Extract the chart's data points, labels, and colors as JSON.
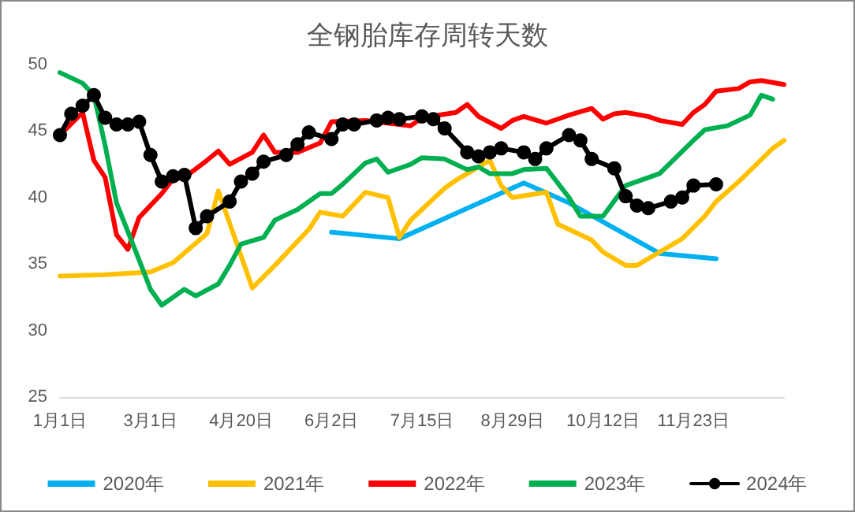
{
  "chart_data": {
    "type": "line",
    "title": "全钢胎库存周转天数",
    "categories": [
      "1月1日",
      null,
      null,
      null,
      null,
      null,
      null,
      null,
      "3月1日",
      null,
      null,
      null,
      null,
      null,
      null,
      null,
      "4月20日",
      null,
      null,
      null,
      null,
      null,
      null,
      null,
      "6月2日",
      null,
      null,
      null,
      null,
      null,
      null,
      null,
      "7月15日",
      null,
      null,
      null,
      null,
      null,
      null,
      null,
      "8月29日",
      null,
      null,
      null,
      null,
      null,
      null,
      null,
      "10月12日",
      null,
      null,
      null,
      null,
      null,
      null,
      null,
      "11月23日",
      null,
      null,
      null,
      null,
      null,
      null,
      null,
      null
    ],
    "ylim": [
      25,
      50
    ],
    "yticks": [
      25,
      30,
      35,
      40,
      45,
      50
    ],
    "grid": false,
    "legend": "bottom",
    "line_style": "solid",
    "series": [
      {
        "name": "2020年",
        "color": "#00b0f0",
        "marker": "none",
        "values": [
          null,
          null,
          null,
          null,
          null,
          null,
          null,
          null,
          null,
          null,
          null,
          null,
          null,
          null,
          null,
          null,
          null,
          null,
          null,
          null,
          null,
          null,
          null,
          null,
          37.4,
          null,
          null,
          null,
          null,
          null,
          36.9,
          null,
          null,
          null,
          null,
          null,
          null,
          null,
          null,
          null,
          null,
          41.1,
          null,
          null,
          null,
          39.6,
          null,
          null,
          null,
          null,
          null,
          null,
          null,
          35.8,
          null,
          null,
          null,
          null,
          35.4,
          null,
          null,
          null,
          null,
          null,
          null
        ]
      },
      {
        "name": "2021年",
        "color": "#ffc000",
        "marker": "none",
        "values": [
          34.1,
          null,
          null,
          null,
          34.2,
          null,
          null,
          null,
          34.4,
          null,
          35.1,
          null,
          null,
          37.3,
          40.5,
          null,
          null,
          33.2,
          null,
          34.9,
          null,
          null,
          37.6,
          38.9,
          null,
          38.6,
          null,
          40.4,
          null,
          40.0,
          37.0,
          38.3,
          39.1,
          null,
          40.7,
          41.3,
          null,
          null,
          42.8,
          40.9,
          40.0,
          null,
          null,
          40.4,
          38.0,
          null,
          null,
          36.8,
          35.9,
          null,
          34.9,
          34.9,
          null,
          35.9,
          null,
          36.9,
          null,
          38.6,
          39.7,
          null,
          41.2,
          null,
          null,
          43.7,
          44.3
        ]
      },
      {
        "name": "2022年",
        "color": "#ff0000",
        "marker": "none",
        "values": [
          44.7,
          null,
          46.4,
          42.8,
          41.5,
          37.2,
          36.1,
          38.5,
          null,
          40.3,
          41.4,
          41.5,
          null,
          42.8,
          43.5,
          42.5,
          null,
          43.4,
          44.7,
          43.4,
          null,
          43.4,
          null,
          44.1,
          45.7,
          null,
          null,
          45.8,
          null,
          null,
          null,
          45.4,
          46.0,
          null,
          null,
          46.4,
          47.0,
          46.1,
          null,
          45.2,
          45.8,
          46.1,
          null,
          45.6,
          45.9,
          46.2,
          null,
          46.7,
          45.9,
          46.3,
          46.4,
          null,
          46.1,
          45.8,
          null,
          45.5,
          46.4,
          47.0,
          48.0,
          null,
          48.2,
          48.7,
          48.8,
          null,
          48.5
        ]
      },
      {
        "name": "2023年",
        "color": "#00b050",
        "marker": "none",
        "values": [
          49.4,
          null,
          48.6,
          47.7,
          43.9,
          39.6,
          null,
          35.3,
          33.1,
          31.9,
          32.5,
          33.1,
          32.6,
          null,
          33.5,
          34.9,
          36.5,
          null,
          37.0,
          38.3,
          null,
          39.1,
          null,
          40.3,
          40.3,
          41.0,
          null,
          42.6,
          42.9,
          41.9,
          null,
          42.5,
          43.0,
          null,
          42.9,
          null,
          42.1,
          42.3,
          41.8,
          null,
          41.8,
          42.1,
          null,
          42.2,
          null,
          40.0,
          38.6,
          null,
          38.6,
          null,
          40.9,
          null,
          null,
          41.8,
          null,
          null,
          44.3,
          45.1,
          null,
          45.4,
          null,
          46.2,
          47.7,
          47.4,
          null
        ]
      },
      {
        "name": "2024年",
        "color": "#000000",
        "marker": "circle",
        "values": [
          44.7,
          46.3,
          46.9,
          47.7,
          46.0,
          45.5,
          45.5,
          45.7,
          43.2,
          41.2,
          41.6,
          41.7,
          37.7,
          38.6,
          null,
          39.7,
          41.2,
          41.8,
          42.7,
          null,
          43.2,
          44.0,
          44.9,
          null,
          44.4,
          45.5,
          45.5,
          null,
          45.8,
          46.0,
          45.9,
          null,
          46.1,
          45.9,
          45.2,
          null,
          43.4,
          43.1,
          43.4,
          43.7,
          null,
          43.4,
          42.9,
          43.7,
          null,
          44.7,
          44.3,
          42.9,
          null,
          42.2,
          40.1,
          39.4,
          39.2,
          null,
          39.7,
          40.0,
          40.9,
          null,
          41.0,
          null,
          null,
          null,
          null,
          null,
          null
        ]
      }
    ]
  }
}
